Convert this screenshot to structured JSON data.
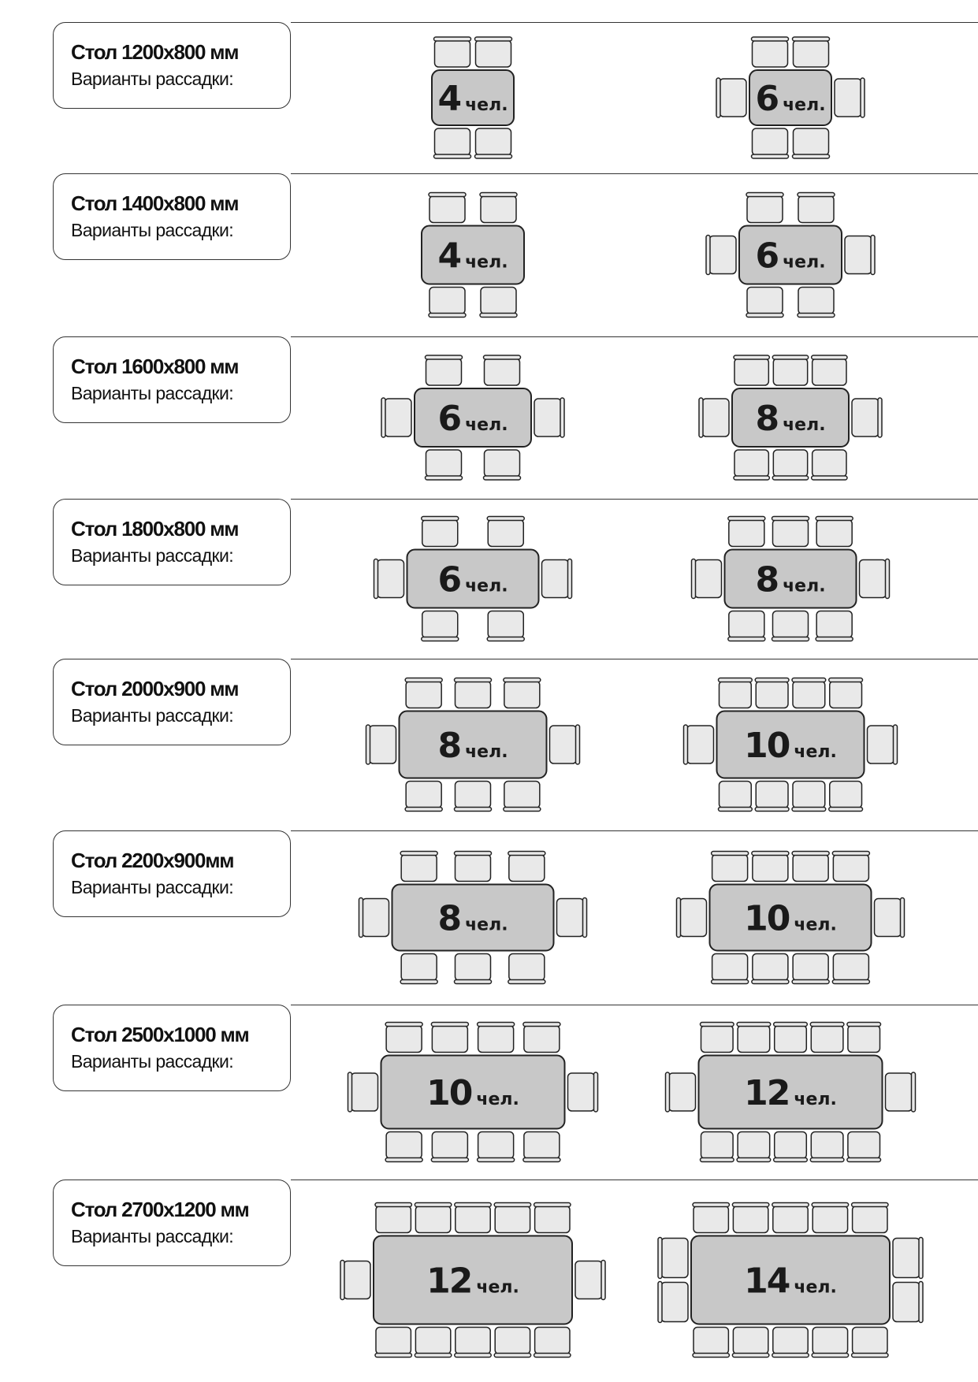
{
  "subtitle": "Варианты рассадки:",
  "unit": "чел.",
  "colors": {
    "table": "#c8c8c8",
    "chair": "#e9e9e9",
    "outline": "#222222"
  },
  "rows": [
    {
      "title": "Стол 1200x800 мм",
      "variants": [
        {
          "people": "4",
          "side_chairs": 2,
          "end_chairs": 0
        },
        {
          "people": "6",
          "side_chairs": 2,
          "end_chairs": 1
        }
      ]
    },
    {
      "title": "Стол 1400x800 мм",
      "variants": [
        {
          "people": "4",
          "side_chairs": 2,
          "end_chairs": 0
        },
        {
          "people": "6",
          "side_chairs": 2,
          "end_chairs": 1
        }
      ]
    },
    {
      "title": "Стол 1600x800 мм",
      "variants": [
        {
          "people": "6",
          "side_chairs": 2,
          "end_chairs": 1
        },
        {
          "people": "8",
          "side_chairs": 3,
          "end_chairs": 1
        }
      ]
    },
    {
      "title": "Стол 1800x800 мм",
      "variants": [
        {
          "people": "6",
          "side_chairs": 2,
          "end_chairs": 1
        },
        {
          "people": "8",
          "side_chairs": 3,
          "end_chairs": 1
        }
      ]
    },
    {
      "title": "Стол 2000x900 мм",
      "variants": [
        {
          "people": "8",
          "side_chairs": 3,
          "end_chairs": 1
        },
        {
          "people": "10",
          "side_chairs": 4,
          "end_chairs": 1
        }
      ]
    },
    {
      "title": "Стол 2200x900мм",
      "variants": [
        {
          "people": "8",
          "side_chairs": 3,
          "end_chairs": 1
        },
        {
          "people": "10",
          "side_chairs": 4,
          "end_chairs": 1
        }
      ]
    },
    {
      "title": "Стол 2500x1000 мм",
      "variants": [
        {
          "people": "10",
          "side_chairs": 4,
          "end_chairs": 1
        },
        {
          "people": "12",
          "side_chairs": 5,
          "end_chairs": 1
        }
      ]
    },
    {
      "title": "Стол 2700x1200 мм",
      "variants": [
        {
          "people": "12",
          "side_chairs": 5,
          "end_chairs": 1
        },
        {
          "people": "14",
          "side_chairs": 5,
          "end_chairs": 2
        }
      ]
    }
  ]
}
